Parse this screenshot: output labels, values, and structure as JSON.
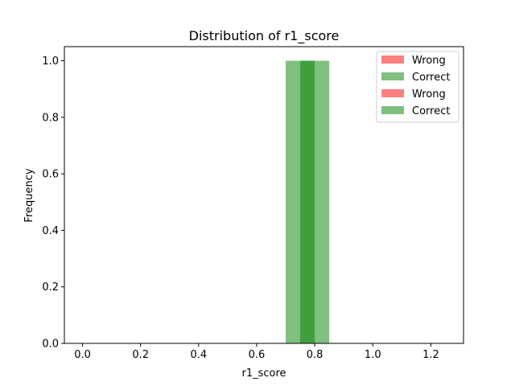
{
  "chart_data": {
    "type": "bar",
    "title": "Distribution of r1_score",
    "xlabel": "r1_score",
    "ylabel": "Frequency",
    "xlim": [
      -0.0625,
      1.3125
    ],
    "ylim": [
      0,
      1.05
    ],
    "xticks": [
      0.0,
      0.2,
      0.4,
      0.6,
      0.8,
      1.0,
      1.2
    ],
    "xtick_labels": [
      "0.0",
      "0.2",
      "0.4",
      "0.6",
      "0.8",
      "1.0",
      "1.2"
    ],
    "yticks": [
      0.0,
      0.2,
      0.4,
      0.6,
      0.8,
      1.0
    ],
    "ytick_labels": [
      "0.0",
      "0.2",
      "0.4",
      "0.6",
      "0.8",
      "1.0"
    ],
    "grid": false,
    "legend_position": "top-right",
    "series": [
      {
        "name": "Wrong",
        "color": "#ff0000",
        "alpha": 0.5,
        "bins": []
      },
      {
        "name": "Correct",
        "color": "#008000",
        "alpha": 0.5,
        "bins": [
          {
            "start": 0.75,
            "end": 0.8,
            "value": 1
          }
        ]
      },
      {
        "name": "Wrong",
        "color": "#ff0000",
        "alpha": 0.5,
        "bins": []
      },
      {
        "name": "Correct",
        "color": "#008000",
        "alpha": 0.5,
        "bins": [
          {
            "start": 0.7,
            "end": 0.85,
            "value": 1
          }
        ]
      }
    ]
  }
}
